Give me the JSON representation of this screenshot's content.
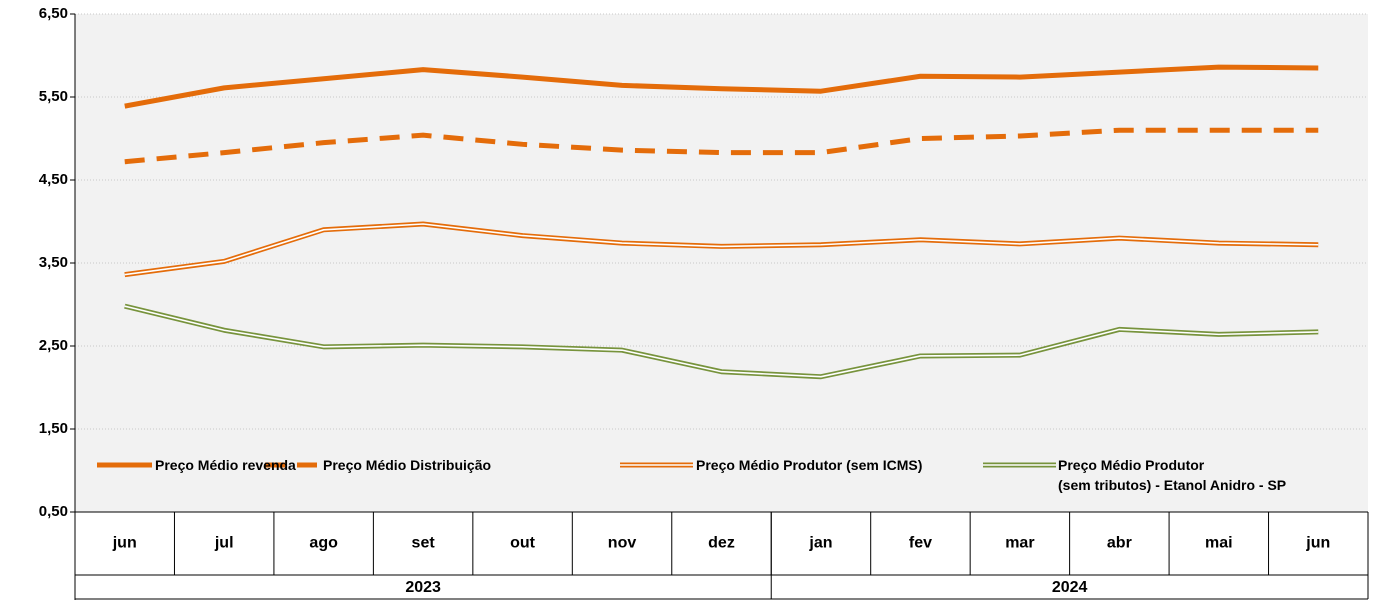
{
  "chart_data": {
    "type": "line",
    "categories": [
      "jun",
      "jul",
      "ago",
      "set",
      "out",
      "nov",
      "dez",
      "jan",
      "fev",
      "mar",
      "abr",
      "mai",
      "jun"
    ],
    "groups": [
      {
        "label": "2023",
        "span": 7
      },
      {
        "label": "2024",
        "span": 6
      }
    ],
    "ylim": [
      0.5,
      6.5
    ],
    "yticks": [
      {
        "value": 0.5,
        "label": "0,50"
      },
      {
        "value": 1.5,
        "label": "1,50"
      },
      {
        "value": 2.5,
        "label": "2,50"
      },
      {
        "value": 3.5,
        "label": "3,50"
      },
      {
        "value": 4.5,
        "label": "4,50"
      },
      {
        "value": 5.5,
        "label": "5,50"
      },
      {
        "value": 6.5,
        "label": "6,50"
      }
    ],
    "grid": true,
    "legend": "bottom-left",
    "series": [
      {
        "name": "Preço Médio revenda",
        "color": "#e46c0a",
        "style": "solid",
        "values": [
          5.39,
          5.61,
          5.72,
          5.83,
          5.74,
          5.64,
          5.6,
          5.57,
          5.75,
          5.74,
          5.8,
          5.86,
          5.85
        ]
      },
      {
        "name": "Preço Médio Distribuição",
        "color": "#e46c0a",
        "style": "dashed",
        "values": [
          4.72,
          4.83,
          4.95,
          5.04,
          4.93,
          4.86,
          4.83,
          4.83,
          5.0,
          5.03,
          5.1,
          5.1,
          5.1
        ]
      },
      {
        "name": "Preço Médio Produtor (sem ICMS)",
        "color": "#e46c0a",
        "style": "double",
        "values": [
          3.36,
          3.52,
          3.9,
          3.97,
          3.83,
          3.74,
          3.7,
          3.72,
          3.78,
          3.73,
          3.8,
          3.74,
          3.72
        ]
      },
      {
        "name": "Preço Médio Produtor\n(sem tributos)  - Etanol Anidro - SP",
        "color": "#77933c",
        "style": "double",
        "values": [
          2.98,
          2.69,
          2.49,
          2.51,
          2.49,
          2.45,
          2.19,
          2.13,
          2.38,
          2.39,
          2.7,
          2.64,
          2.67
        ]
      }
    ]
  }
}
